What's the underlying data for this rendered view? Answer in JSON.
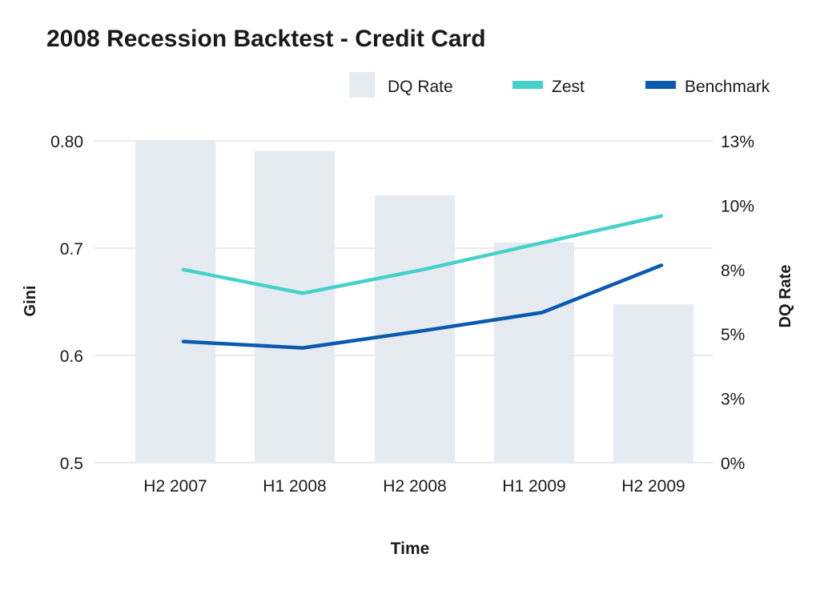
{
  "chart_data": {
    "type": "bar",
    "title": "2008 Recession Backtest - Credit Card",
    "xlabel": "Time",
    "ylabel_left": "Gini",
    "ylabel_right": "DQ Rate",
    "categories": [
      "H2 2007",
      "H1 2008",
      "H2 2008",
      "H1 2009",
      "H2 2009"
    ],
    "left_axis": {
      "range": [
        0.5,
        0.8
      ],
      "ticks": [
        0.5,
        0.6,
        0.7,
        0.8
      ],
      "tick_labels": [
        "0.5",
        "0.6",
        "0.7",
        "0.80"
      ]
    },
    "right_axis": {
      "range": [
        0,
        13
      ],
      "ticks": [
        0,
        2.6,
        5.2,
        7.8,
        10.4,
        13
      ],
      "tick_labels": [
        "0%",
        "3%",
        "5%",
        "8%",
        "10%",
        "13%"
      ]
    },
    "bars": {
      "name": "DQ Rate",
      "axis": "right",
      "values": [
        13.0,
        12.6,
        10.8,
        8.9,
        6.4
      ]
    },
    "series": [
      {
        "name": "Zest",
        "axis": "left",
        "values": [
          0.68,
          0.658,
          0.68,
          0.705,
          0.73
        ]
      },
      {
        "name": "Benchmark",
        "axis": "left",
        "values": [
          0.613,
          0.607,
          0.623,
          0.64,
          0.684
        ]
      }
    ],
    "legend": [
      "DQ Rate",
      "Zest",
      "Benchmark"
    ],
    "legend_position": "top-right",
    "grid": true,
    "colors": {
      "bar": "#e6ebf2",
      "zest": "#45d1c9",
      "benchmark": "#0a5ab0",
      "grid": "#e3e3e3",
      "text": "#1a1a1a"
    }
  }
}
